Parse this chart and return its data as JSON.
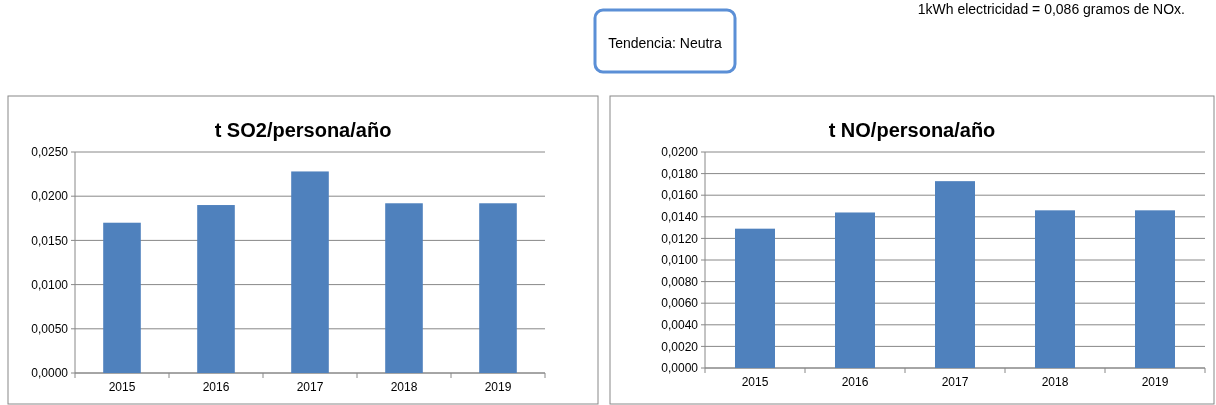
{
  "chart_data": [
    {
      "type": "bar",
      "title": "t SO2/persona/año",
      "categories": [
        "2015",
        "2016",
        "2017",
        "2018",
        "2019"
      ],
      "values": [
        0.017,
        0.019,
        0.0228,
        0.0192,
        0.0192
      ],
      "color": "#4f81bd",
      "ylim": [
        0,
        0.025
      ],
      "yticks": [
        {
          "value": 0,
          "label": "0,0000"
        },
        {
          "value": 0.005,
          "label": "0,0050"
        },
        {
          "value": 0.01,
          "label": "0,0100"
        },
        {
          "value": 0.015,
          "label": "0,0150"
        },
        {
          "value": 0.02,
          "label": "0,0200"
        },
        {
          "value": 0.025,
          "label": "0,0250"
        }
      ],
      "grid": "y"
    },
    {
      "type": "bar",
      "title": "t NO/persona/año",
      "categories": [
        "2015",
        "2016",
        "2017",
        "2018",
        "2019"
      ],
      "values": [
        0.0129,
        0.0144,
        0.0173,
        0.0146,
        0.0146
      ],
      "color": "#4f81bd",
      "ylim": [
        0,
        0.02
      ],
      "yticks": [
        {
          "value": 0,
          "label": "0,0000"
        },
        {
          "value": 0.002,
          "label": "0,0020"
        },
        {
          "value": 0.004,
          "label": "0,0040"
        },
        {
          "value": 0.006,
          "label": "0,0060"
        },
        {
          "value": 0.008,
          "label": "0,0080"
        },
        {
          "value": 0.01,
          "label": "0,0100"
        },
        {
          "value": 0.012,
          "label": "0,0120"
        },
        {
          "value": 0.014,
          "label": "0,0140"
        },
        {
          "value": 0.016,
          "label": "0,0160"
        },
        {
          "value": 0.018,
          "label": "0,0180"
        },
        {
          "value": 0.02,
          "label": "0,0200"
        }
      ],
      "grid": "y"
    },
    {
      "type": "other",
      "annotations": [
        "Tendencia: Neutra",
        "1kWh electricidad = 0,086 gramos de NOx."
      ]
    }
  ]
}
